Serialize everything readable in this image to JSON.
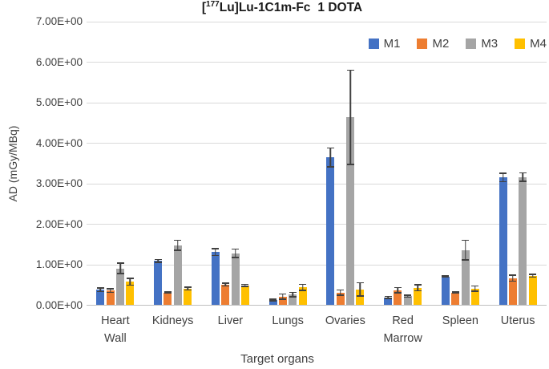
{
  "title": {
    "bracket": "[",
    "isotope": "177",
    "compound": "Lu]Lu-1C1m-Fc",
    "suffix": "1 DOTA"
  },
  "y_axis": {
    "title": "AD (mGy/MBq)",
    "tick_labels": [
      "0.00E+00",
      "1.00E+00",
      "2.00E+00",
      "3.00E+00",
      "4.00E+00",
      "5.00E+00",
      "6.00E+00",
      "7.00E+00"
    ],
    "min": 0,
    "max": 7
  },
  "x_axis": {
    "title": "Target organs"
  },
  "colors": {
    "m1_blue": "#4472C4",
    "m2_orange": "#ED7D31",
    "m3_gray": "#A5A5A5",
    "m4_yellow": "#FFC000",
    "gridline": "#D9D9D9",
    "axis_line": "#BFBFBF",
    "error_bar": "#404040",
    "text": "#404040"
  },
  "chart_data": {
    "type": "bar",
    "title": "[177Lu]Lu-1C1m-Fc  1 DOTA",
    "xlabel": "Target organs",
    "ylabel": "AD (mGy/MBq)",
    "ylim": [
      0,
      7
    ],
    "ytick_step": 1,
    "ytick_format": "scientific E+00",
    "grid": true,
    "error_bars": true,
    "legend_position": "top-right-inside",
    "categories": [
      "Heart Wall",
      "Kidneys",
      "Liver",
      "Lungs",
      "Ovaries",
      "Red Marrow",
      "Spleen",
      "Uterus"
    ],
    "series": [
      {
        "name": "M1",
        "color": "#4472C4",
        "values": [
          0.37,
          1.08,
          1.3,
          0.12,
          3.63,
          0.18,
          0.7,
          3.14
        ],
        "errors": [
          0.06,
          0.05,
          0.1,
          0.04,
          0.25,
          0.04,
          0.03,
          0.12
        ]
      },
      {
        "name": "M2",
        "color": "#ED7D31",
        "values": [
          0.35,
          0.3,
          0.5,
          0.2,
          0.3,
          0.36,
          0.3,
          0.66
        ],
        "errors": [
          0.06,
          0.03,
          0.05,
          0.08,
          0.08,
          0.08,
          0.03,
          0.09
        ]
      },
      {
        "name": "M3",
        "color": "#A5A5A5",
        "values": [
          0.9,
          1.47,
          1.27,
          0.25,
          4.62,
          0.21,
          1.35,
          3.15
        ],
        "errors": [
          0.14,
          0.14,
          0.12,
          0.07,
          1.18,
          0.04,
          0.26,
          0.12
        ]
      },
      {
        "name": "M4",
        "color": "#FFC000",
        "values": [
          0.57,
          0.4,
          0.48,
          0.43,
          0.38,
          0.42,
          0.4,
          0.72
        ],
        "errors": [
          0.1,
          0.05,
          0.04,
          0.09,
          0.18,
          0.09,
          0.08,
          0.05
        ]
      }
    ]
  }
}
